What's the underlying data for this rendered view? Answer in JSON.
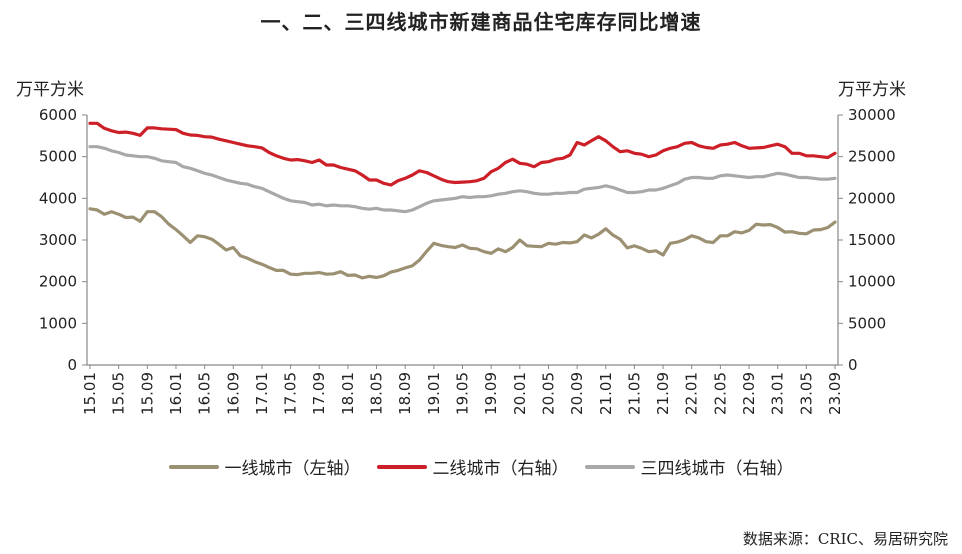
{
  "chart_data": {
    "type": "line",
    "title": "一、二、三四线城市新建商品住宅库存同比增速",
    "ylabel_left": "万平方米",
    "ylabel_right": "万平方米",
    "ylim_left": [
      0,
      6000
    ],
    "ylim_right": [
      0,
      30000
    ],
    "yticks_left": [
      "0",
      "1000",
      "2000",
      "3000",
      "4000",
      "5000",
      "6000"
    ],
    "yticks_right": [
      "0",
      "5000",
      "10000",
      "15000",
      "20000",
      "25000",
      "30000"
    ],
    "xticks": [
      "15.01",
      "15.05",
      "15.09",
      "16.01",
      "16.05",
      "16.09",
      "17.01",
      "17.05",
      "17.09",
      "18.01",
      "18.05",
      "18.09",
      "19.01",
      "19.05",
      "19.09",
      "20.01",
      "20.05",
      "20.09",
      "21.01",
      "21.05",
      "21.09",
      "22.01",
      "22.05",
      "22.09",
      "23.01",
      "23.05",
      "23.09"
    ],
    "grid": false,
    "legend_position": "bottom",
    "series": [
      {
        "name": "一线城市（左轴）",
        "axis": "left",
        "color": "#9b9172",
        "values": [
          3750,
          3720,
          3620,
          3680,
          3620,
          3540,
          3550,
          3450,
          3680,
          3680,
          3560,
          3380,
          3250,
          3100,
          2940,
          3100,
          3080,
          3020,
          2900,
          2760,
          2820,
          2620,
          2560,
          2480,
          2420,
          2340,
          2270,
          2270,
          2180,
          2170,
          2200,
          2200,
          2220,
          2180,
          2190,
          2240,
          2150,
          2160,
          2090,
          2130,
          2100,
          2140,
          2230,
          2270,
          2330,
          2380,
          2520,
          2730,
          2920,
          2870,
          2840,
          2820,
          2880,
          2800,
          2790,
          2720,
          2680,
          2790,
          2720,
          2820,
          3000,
          2860,
          2850,
          2840,
          2920,
          2900,
          2940,
          2930,
          2960,
          3120,
          3050,
          3140,
          3270,
          3120,
          3020,
          2810,
          2860,
          2800,
          2720,
          2740,
          2640,
          2920,
          2950,
          3010,
          3100,
          3050,
          2960,
          2940,
          3100,
          3100,
          3200,
          3170,
          3230,
          3380,
          3360,
          3370,
          3300,
          3190,
          3200,
          3160,
          3150,
          3240,
          3250,
          3300,
          3430
        ]
      },
      {
        "name": "二线城市（右轴）",
        "axis": "right",
        "color": "#cc1f27",
        "values": [
          29000,
          29000,
          28400,
          28100,
          27900,
          27950,
          27800,
          27550,
          28450,
          28450,
          28350,
          28300,
          28250,
          27800,
          27600,
          27550,
          27400,
          27350,
          27100,
          26900,
          26700,
          26500,
          26300,
          26200,
          26050,
          25500,
          25100,
          24800,
          24600,
          24650,
          24500,
          24300,
          24600,
          24000,
          24000,
          23700,
          23500,
          23300,
          22800,
          22200,
          22200,
          21800,
          21600,
          22100,
          22400,
          22800,
          23300,
          23100,
          22700,
          22300,
          22000,
          21900,
          21950,
          22000,
          22100,
          22400,
          23200,
          23600,
          24300,
          24700,
          24200,
          24100,
          23800,
          24300,
          24400,
          24700,
          24800,
          25200,
          26700,
          26400,
          26900,
          27400,
          26900,
          26200,
          25600,
          25700,
          25400,
          25300,
          25000,
          25200,
          25700,
          26000,
          26200,
          26600,
          26700,
          26300,
          26100,
          26000,
          26400,
          26500,
          26700,
          26300,
          26000,
          26050,
          26100,
          26300,
          26500,
          26200,
          25400,
          25400,
          25100,
          25100,
          25000,
          24900,
          25400
        ]
      },
      {
        "name": "三四线城市（右轴）",
        "axis": "right",
        "color": "#a8a8a8",
        "values": [
          26200,
          26200,
          26000,
          25700,
          25500,
          25200,
          25100,
          25000,
          25000,
          24800,
          24500,
          24400,
          24300,
          23800,
          23600,
          23300,
          23000,
          22800,
          22500,
          22200,
          22000,
          21800,
          21700,
          21400,
          21200,
          20800,
          20400,
          20000,
          19700,
          19600,
          19500,
          19200,
          19300,
          19100,
          19200,
          19100,
          19100,
          19000,
          18800,
          18700,
          18800,
          18600,
          18600,
          18500,
          18400,
          18600,
          19000,
          19400,
          19700,
          19800,
          19900,
          20000,
          20200,
          20100,
          20200,
          20200,
          20300,
          20500,
          20600,
          20800,
          20900,
          20800,
          20600,
          20500,
          20500,
          20600,
          20600,
          20700,
          20700,
          21100,
          21200,
          21300,
          21500,
          21300,
          21000,
          20700,
          20700,
          20800,
          21000,
          21000,
          21200,
          21500,
          21800,
          22300,
          22500,
          22500,
          22400,
          22400,
          22700,
          22800,
          22700,
          22600,
          22500,
          22600,
          22600,
          22800,
          23000,
          22900,
          22700,
          22500,
          22500,
          22400,
          22300,
          22300,
          22400
        ]
      }
    ]
  },
  "source_note": "数据来源：CRIC、易居研究院"
}
